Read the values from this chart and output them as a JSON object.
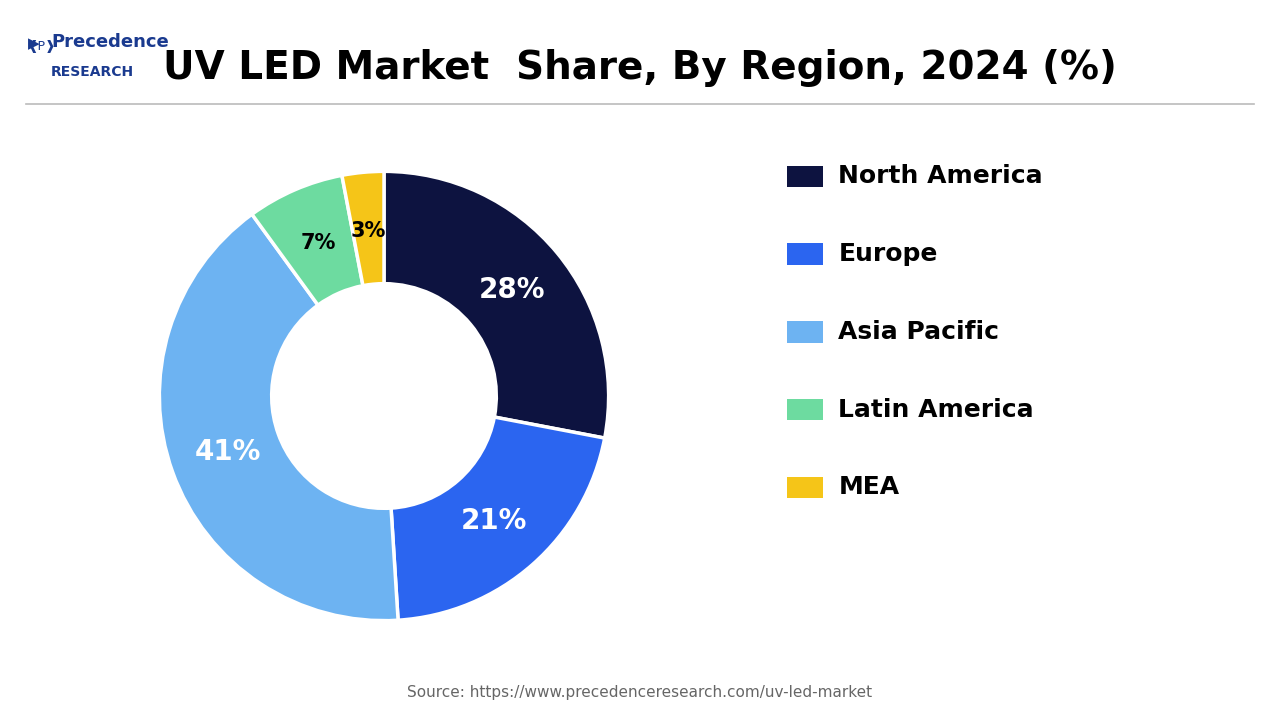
{
  "title": "UV LED Market  Share, By Region, 2024 (%)",
  "labels": [
    "North America",
    "Europe",
    "Asia Pacific",
    "Latin America",
    "MEA"
  ],
  "values": [
    28,
    21,
    41,
    7,
    3
  ],
  "colors": [
    "#0d1340",
    "#2b65f0",
    "#6db3f2",
    "#6ddba0",
    "#f5c518"
  ],
  "pct_colors": [
    "white",
    "white",
    "white",
    "black",
    "black"
  ],
  "source_text": "Source: https://www.precedenceresearch.com/uv-led-market",
  "bg_color": "#ffffff",
  "title_fontsize": 28,
  "legend_fontsize": 18,
  "pct_fontsize": 20,
  "logo_precedence": "Precedence",
  "logo_research": "RESEARCH"
}
